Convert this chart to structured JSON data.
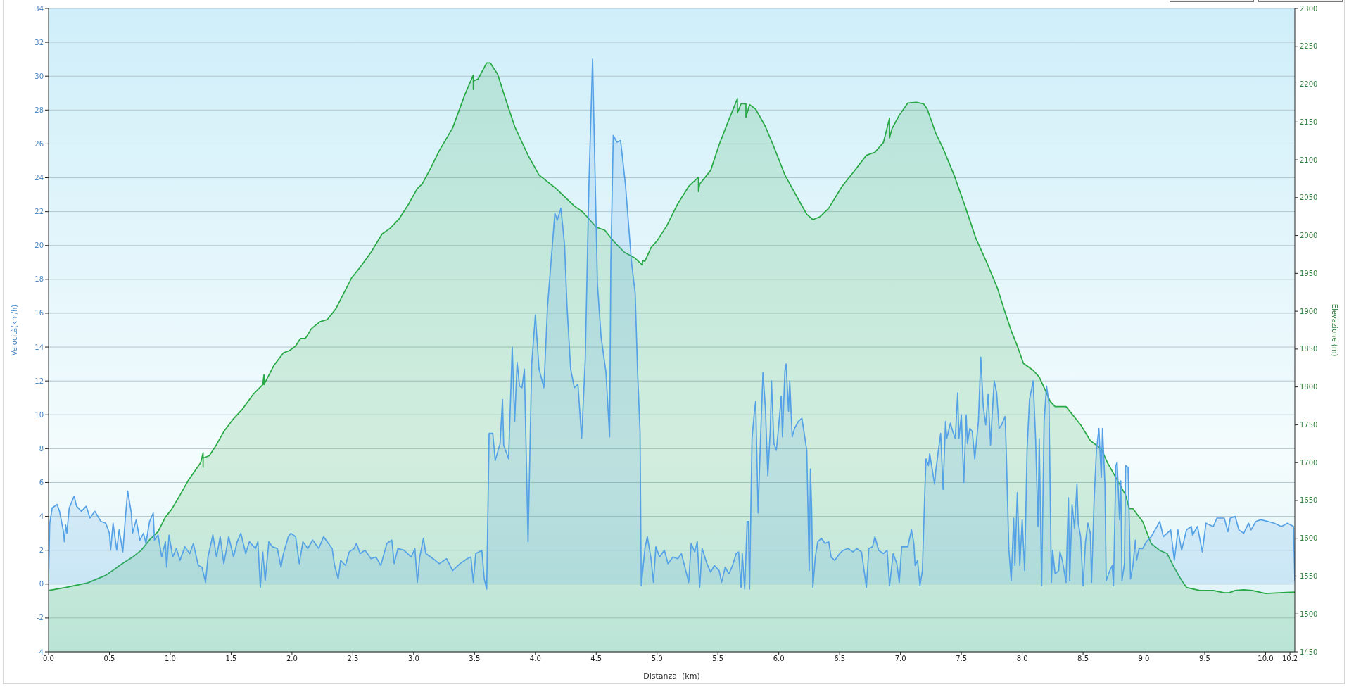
{
  "chart_data": {
    "type": "area",
    "xlabel": "Distanza  (km)",
    "ylabel": "Velocità(km/h)",
    "y2label": "Elevazione (m)",
    "xlim": [
      0,
      10.24
    ],
    "xticks": [
      {
        "value": 0,
        "label": "0.0"
      },
      0.5,
      {
        "value": 1,
        "label": "1.0"
      },
      1.5,
      {
        "value": 2,
        "label": "2.0"
      },
      2.5,
      {
        "value": 3,
        "label": "3.0"
      },
      3.5,
      {
        "value": 4,
        "label": "4.0"
      },
      4.5,
      {
        "value": 5,
        "label": "5.0"
      },
      5.5,
      {
        "value": 6,
        "label": "6.0"
      },
      6.5,
      {
        "value": 7,
        "label": "7.0"
      },
      7.5,
      {
        "value": 8,
        "label": "8.0"
      },
      8.5,
      {
        "value": 9,
        "label": "9.0"
      },
      9.5,
      {
        "value": 10,
        "label": "10.0"
      },
      10.2
    ],
    "ylim": [
      -4,
      34
    ],
    "yticks": [
      -4,
      -2,
      0,
      2,
      4,
      6,
      8,
      10,
      12,
      14,
      16,
      18,
      20,
      22,
      24,
      26,
      28,
      30,
      32,
      34
    ],
    "y2lim": [
      1450,
      2300
    ],
    "y2ticks": [
      1450,
      1500,
      1550,
      1600,
      1650,
      1700,
      1750,
      1800,
      1850,
      1900,
      1950,
      2000,
      2050,
      2100,
      2150,
      2200,
      2250,
      2300
    ],
    "grid": "y",
    "series": [
      {
        "color": "#55a1e6",
        "x": [
          0,
          0.01,
          0.03,
          0.07,
          0.09,
          0.12,
          0.13,
          0.14,
          0.15,
          0.17,
          0.21,
          0.23,
          0.27,
          0.31,
          0.34,
          0.38,
          0.43,
          0.47,
          0.5,
          0.51,
          0.53,
          0.56,
          0.58,
          0.61,
          0.63,
          0.65,
          0.68,
          0.69,
          0.72,
          0.75,
          0.78,
          0.8,
          0.83,
          0.86,
          0.87,
          0.9,
          0.93,
          0.96,
          0.97,
          0.99,
          1.02,
          1.05,
          1.08,
          1.12,
          1.16,
          1.19,
          1.23,
          1.26,
          1.29,
          1.31,
          1.35,
          1.38,
          1.41,
          1.44,
          1.48,
          1.52,
          1.55,
          1.58,
          1.62,
          1.65,
          1.7,
          1.72,
          1.74,
          1.76,
          1.78,
          1.81,
          1.84,
          1.88,
          1.91,
          1.93,
          1.97,
          1.99,
          2.03,
          2.06,
          2.09,
          2.13,
          2.17,
          2.22,
          2.26,
          2.29,
          2.33,
          2.35,
          2.38,
          2.4,
          2.44,
          2.47,
          2.51,
          2.53,
          2.56,
          2.6,
          2.65,
          2.69,
          2.73,
          2.78,
          2.82,
          2.84,
          2.87,
          2.92,
          2.98,
          3.01,
          3.03,
          3.05,
          3.08,
          3.1,
          3.16,
          3.21,
          3.27,
          3.32,
          3.38,
          3.44,
          3.47,
          3.49,
          3.51,
          3.56,
          3.58,
          3.6,
          3.62,
          3.65,
          3.67,
          3.71,
          3.73,
          3.74,
          3.78,
          3.81,
          3.83,
          3.85,
          3.87,
          3.89,
          3.91,
          3.94,
          3.97,
          4.0,
          4.03,
          4.07,
          4.1,
          4.16,
          4.18,
          4.21,
          4.24,
          4.26,
          4.29,
          4.32,
          4.35,
          4.38,
          4.41,
          4.44,
          4.47,
          4.51,
          4.54,
          4.58,
          4.61,
          4.62,
          4.64,
          4.67,
          4.7,
          4.74,
          4.79,
          4.82,
          4.84,
          4.86,
          4.87,
          4.9,
          4.92,
          4.95,
          4.97,
          4.99,
          5.02,
          5.06,
          5.09,
          5.13,
          5.17,
          5.2,
          5.26,
          5.28,
          5.31,
          5.33,
          5.35,
          5.37,
          5.41,
          5.44,
          5.47,
          5.51,
          5.53,
          5.56,
          5.59,
          5.62,
          5.65,
          5.67,
          5.69,
          5.7,
          5.72,
          5.74,
          5.75,
          5.76,
          5.78,
          5.8,
          5.81,
          5.83,
          5.85,
          5.87,
          5.89,
          5.91,
          5.93,
          5.94,
          5.96,
          5.98,
          6.0,
          6.02,
          6.03,
          6.05,
          6.06,
          6.08,
          6.09,
          6.11,
          6.13,
          6.16,
          6.19,
          6.23,
          6.25,
          6.26,
          6.27,
          6.28,
          6.3,
          6.32,
          6.35,
          6.38,
          6.41,
          6.43,
          6.46,
          6.5,
          6.53,
          6.57,
          6.61,
          6.64,
          6.68,
          6.72,
          6.74,
          6.77,
          6.79,
          6.82,
          6.86,
          6.89,
          6.91,
          6.94,
          6.97,
          6.99,
          7.01,
          7.06,
          7.09,
          7.11,
          7.12,
          7.14,
          7.16,
          7.18,
          7.2,
          7.21,
          7.23,
          7.24,
          7.26,
          7.28,
          7.29,
          7.31,
          7.33,
          7.35,
          7.37,
          7.38,
          7.41,
          7.43,
          7.45,
          7.47,
          7.48,
          7.5,
          7.52,
          7.54,
          7.55,
          7.57,
          7.59,
          7.61,
          7.64,
          7.66,
          7.68,
          7.7,
          7.72,
          7.74,
          7.75,
          7.77,
          7.79,
          7.81,
          7.83,
          7.86,
          7.87,
          7.89,
          7.91,
          7.93,
          7.94,
          7.96,
          7.98,
          8.0,
          8.02,
          8.04,
          8.06,
          8.09,
          8.11,
          8.13,
          8.14,
          8.16,
          8.18,
          8.2,
          8.22,
          8.24,
          8.25,
          8.27,
          8.3,
          8.31,
          8.33,
          8.36,
          8.38,
          8.39,
          8.41,
          8.43,
          8.45,
          8.46,
          8.48,
          8.5,
          8.52,
          8.54,
          8.56,
          8.57,
          8.59,
          8.61,
          8.63,
          8.65,
          8.66,
          8.68,
          8.69,
          8.72,
          8.74,
          8.75,
          8.77,
          8.78,
          8.8,
          8.81,
          8.82,
          8.84,
          8.85,
          8.87,
          8.89,
          8.91,
          8.93,
          8.94,
          8.96,
          8.99,
          9.02,
          9.06,
          9.1,
          9.13,
          9.16,
          9.19,
          9.22,
          9.25,
          9.28,
          9.31,
          9.35,
          9.39,
          9.4,
          9.44,
          9.48,
          9.51,
          9.57,
          9.6,
          9.66,
          9.69,
          9.71,
          9.75,
          9.78,
          9.82,
          9.86,
          9.88,
          9.92,
          9.96,
          10.02,
          10.07,
          10.13,
          10.18,
          10.23,
          10.24
        ],
        "values": [
          0.2,
          3.6,
          4.5,
          4.7,
          4.3,
          3.2,
          2.5,
          3.5,
          3.0,
          4.5,
          5.2,
          4.6,
          4.3,
          4.6,
          3.9,
          4.3,
          3.7,
          3.6,
          3.0,
          2.0,
          3.6,
          2.0,
          3.2,
          1.9,
          3.8,
          5.5,
          4.2,
          3.0,
          3.8,
          2.6,
          3.0,
          2.4,
          3.7,
          4.2,
          2.6,
          2.9,
          1.6,
          2.5,
          1.0,
          2.9,
          1.6,
          2.1,
          1.4,
          2.2,
          1.8,
          2.4,
          1.1,
          1.0,
          0.1,
          1.6,
          2.9,
          1.6,
          2.8,
          1.2,
          2.8,
          1.6,
          2.5,
          3.0,
          1.8,
          2.5,
          2.1,
          2.5,
          -0.2,
          1.9,
          0.2,
          2.5,
          2.2,
          2.1,
          1.0,
          1.8,
          2.8,
          3.0,
          2.8,
          1.2,
          2.5,
          2.1,
          2.6,
          2.1,
          2.8,
          2.5,
          2.1,
          1.1,
          0.3,
          1.4,
          1.1,
          1.9,
          2.1,
          2.4,
          1.8,
          2.0,
          1.5,
          1.6,
          1.1,
          2.4,
          2.6,
          1.2,
          2.1,
          2.0,
          1.6,
          2.1,
          0.1,
          1.6,
          2.7,
          1.8,
          1.5,
          1.2,
          1.5,
          0.8,
          1.2,
          1.5,
          1.6,
          0.1,
          1.8,
          2.0,
          0.3,
          -0.3,
          8.9,
          8.9,
          7.3,
          8.3,
          10.9,
          8.2,
          7.4,
          14.0,
          9.6,
          13.1,
          11.7,
          11.6,
          12.7,
          2.5,
          13.0,
          15.9,
          12.7,
          11.6,
          16.4,
          21.9,
          21.5,
          22.2,
          20.0,
          16.4,
          12.7,
          11.6,
          11.8,
          8.6,
          13.3,
          23.6,
          31.0,
          17.7,
          14.6,
          12.5,
          8.7,
          19.0,
          26.5,
          26.1,
          26.2,
          23.6,
          19.0,
          17.2,
          12.5,
          9.0,
          -0.1,
          2.1,
          2.8,
          1.5,
          0.1,
          2.2,
          1.6,
          2.0,
          1.2,
          1.6,
          1.5,
          1.8,
          0.1,
          2.4,
          1.9,
          2.5,
          -0.2,
          2.1,
          1.2,
          0.7,
          1.1,
          0.8,
          0.1,
          1.0,
          0.6,
          1.1,
          1.8,
          1.9,
          -0.2,
          1.8,
          -0.3,
          3.7,
          3.7,
          -0.3,
          8.6,
          10.2,
          10.8,
          4.2,
          8.6,
          12.5,
          10.4,
          6.4,
          9.1,
          12.0,
          8.3,
          7.9,
          9.4,
          11.1,
          8.7,
          12.6,
          13.0,
          10.2,
          12.0,
          8.7,
          9.2,
          9.6,
          9.8,
          7.9,
          0.8,
          6.8,
          4.5,
          -0.2,
          1.6,
          2.5,
          2.7,
          2.4,
          2.5,
          1.6,
          1.4,
          1.8,
          2.0,
          2.1,
          1.9,
          2.1,
          1.9,
          -0.2,
          2.1,
          2.2,
          2.8,
          2.0,
          1.8,
          2.0,
          -0.1,
          1.8,
          1.2,
          0.1,
          2.2,
          2.2,
          3.2,
          2.4,
          1.1,
          1.4,
          -0.1,
          0.8,
          5.5,
          7.4,
          7.0,
          7.7,
          6.8,
          5.9,
          6.7,
          7.8,
          8.9,
          5.6,
          9.6,
          8.6,
          9.5,
          9.0,
          8.6,
          11.3,
          8.6,
          10.0,
          6.0,
          10.0,
          8.3,
          9.2,
          9.0,
          7.4,
          9.6,
          13.4,
          10.5,
          9.4,
          11.2,
          8.2,
          9.6,
          12.0,
          11.3,
          9.2,
          9.4,
          9.9,
          7.6,
          2.1,
          0.2,
          3.9,
          1.1,
          5.4,
          1.1,
          3.8,
          0.8,
          7.9,
          10.9,
          12.0,
          8.6,
          3.4,
          8.6,
          -0.1,
          9.6,
          11.7,
          10.7,
          0.1,
          2.0,
          0.6,
          0.8,
          1.9,
          1.4,
          0.1,
          5.1,
          0.2,
          4.7,
          3.3,
          5.9,
          3.6,
          2.8,
          -0.1,
          2.5,
          3.6,
          3.0,
          0.1,
          4.8,
          7.9,
          9.2,
          6.3,
          9.2,
          5.9,
          0.2,
          0.8,
          1.1,
          -0.1,
          7.0,
          7.2,
          3.8,
          6.1,
          0.2,
          1.2,
          7.0,
          6.9,
          0.3,
          1.1,
          2.6,
          1.4,
          2.1,
          2.1,
          2.5,
          2.8,
          3.3,
          3.7,
          2.8,
          3.0,
          3.2,
          1.4,
          3.2,
          2.0,
          3.2,
          3.4,
          2.9,
          3.4,
          1.9,
          3.6,
          3.4,
          3.9,
          3.9,
          3.1,
          3.9,
          4.0,
          3.2,
          3.0,
          3.6,
          3.2,
          3.7,
          3.8,
          3.7,
          3.6,
          3.4,
          3.6,
          3.4,
          0.2
        ]
      },
      {
        "color": "#27a844",
        "axis": "y2",
        "x": [
          0,
          0.14,
          0.32,
          0.47,
          0.61,
          0.69,
          0.76,
          0.83,
          0.9,
          0.96,
          1.01,
          1.08,
          1.15,
          1.25,
          1.27,
          1.27,
          1.27,
          1.32,
          1.37,
          1.44,
          1.52,
          1.59,
          1.68,
          1.76,
          1.77,
          1.77,
          1.85,
          1.93,
          1.98,
          2.03,
          2.07,
          2.11,
          2.16,
          2.23,
          2.29,
          2.36,
          2.43,
          2.49,
          2.56,
          2.65,
          2.74,
          2.81,
          2.88,
          2.96,
          3.03,
          3.07,
          3.14,
          3.21,
          3.32,
          3.42,
          3.49,
          3.49,
          3.49,
          3.53,
          3.6,
          3.63,
          3.69,
          3.76,
          3.83,
          3.94,
          4.03,
          4.17,
          4.32,
          4.39,
          4.5,
          4.57,
          4.64,
          4.73,
          4.82,
          4.88,
          4.88,
          4.9,
          4.95,
          5.0,
          5.08,
          5.17,
          5.26,
          5.34,
          5.34,
          5.35,
          5.44,
          5.51,
          5.58,
          5.64,
          5.66,
          5.66,
          5.69,
          5.73,
          5.73,
          5.76,
          5.81,
          5.89,
          5.96,
          6.05,
          6.16,
          6.23,
          6.28,
          6.34,
          6.41,
          6.52,
          6.61,
          6.72,
          6.79,
          6.86,
          6.91,
          6.91,
          6.93,
          6.99,
          7.06,
          7.13,
          7.19,
          7.22,
          7.29,
          7.35,
          7.44,
          7.53,
          7.62,
          7.71,
          7.8,
          7.85,
          7.91,
          7.96,
          8.01,
          8.09,
          8.14,
          8.18,
          8.23,
          8.27,
          8.36,
          8.41,
          8.48,
          8.56,
          8.65,
          8.7,
          8.77,
          8.85,
          8.88,
          8.91,
          8.99,
          9.06,
          9.13,
          9.19,
          9.24,
          9.3,
          9.35,
          9.46,
          9.57,
          9.66,
          9.7,
          9.75,
          9.82,
          9.89,
          10.0,
          10.11,
          10.24
        ],
        "values": [
          1531,
          1535,
          1541,
          1551,
          1567,
          1575,
          1584,
          1598,
          1609,
          1628,
          1638,
          1657,
          1677,
          1700,
          1713,
          1694,
          1706,
          1709,
          1721,
          1741,
          1758,
          1770,
          1790,
          1803,
          1816,
          1803,
          1828,
          1845,
          1848,
          1854,
          1864,
          1864,
          1877,
          1886,
          1889,
          1903,
          1925,
          1944,
          1958,
          1978,
          2002,
          2010,
          2022,
          2042,
          2062,
          2068,
          2089,
          2112,
          2142,
          2186,
          2212,
          2193,
          2204,
          2207,
          2228,
          2228,
          2213,
          2178,
          2144,
          2106,
          2080,
          2062,
          2039,
          2031,
          2011,
          2007,
          1993,
          1978,
          1970,
          1961,
          1967,
          1966,
          1984,
          1993,
          2013,
          2042,
          2065,
          2077,
          2058,
          2068,
          2086,
          2120,
          2149,
          2173,
          2181,
          2162,
          2174,
          2174,
          2156,
          2173,
          2167,
          2144,
          2117,
          2080,
          2048,
          2028,
          2021,
          2025,
          2036,
          2065,
          2083,
          2106,
          2110,
          2123,
          2155,
          2129,
          2141,
          2159,
          2175,
          2176,
          2174,
          2167,
          2135,
          2115,
          2080,
          2039,
          1996,
          1964,
          1929,
          1903,
          1874,
          1854,
          1831,
          1822,
          1813,
          1799,
          1781,
          1774,
          1774,
          1764,
          1750,
          1729,
          1718,
          1700,
          1680,
          1657,
          1639,
          1639,
          1622,
          1593,
          1584,
          1580,
          1564,
          1547,
          1535,
          1531,
          1531,
          1528,
          1528,
          1531,
          1532,
          1531,
          1527,
          1528,
          1529
        ]
      }
    ]
  }
}
